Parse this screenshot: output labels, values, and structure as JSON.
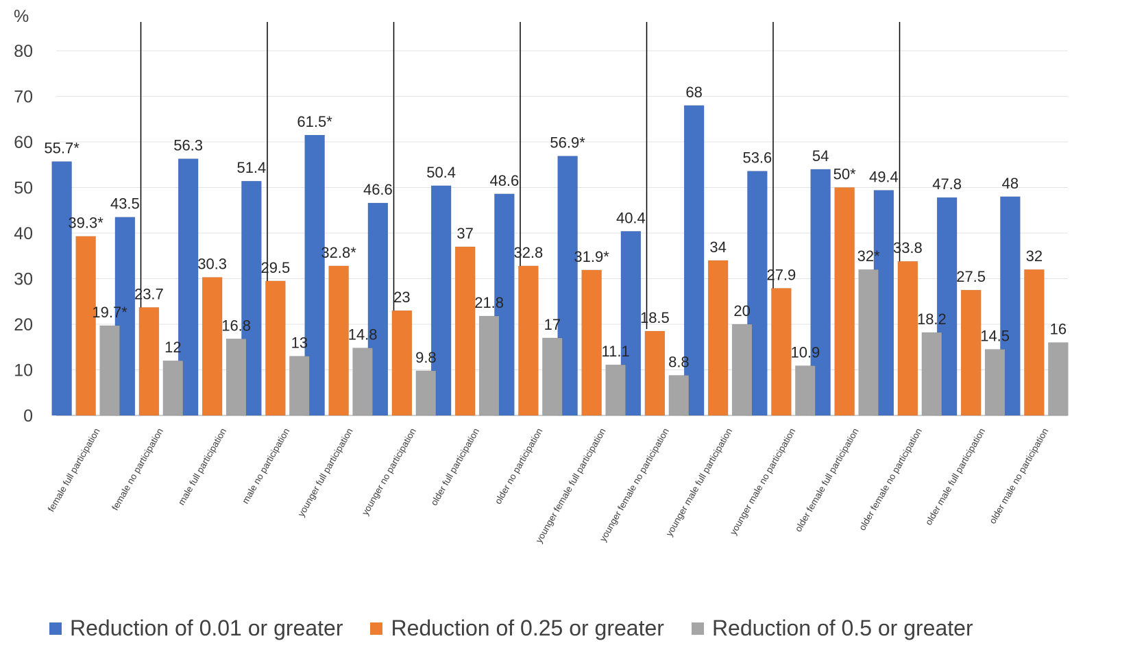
{
  "chart_data": {
    "type": "bar",
    "ylabel": "%",
    "ylim": [
      0,
      80
    ],
    "yticks": [
      "0",
      "10",
      "20",
      "30",
      "40",
      "50",
      "60",
      "70",
      "80"
    ],
    "categories": [
      "female full participation",
      "female no participation",
      "male full participation",
      "male no participation",
      "younger full participation",
      "younger no participation",
      "older full participation",
      "older no participation",
      "younger female full participation",
      "younger female no participation",
      "younger male full participation",
      "younger male no participation",
      "older female full participation",
      "older female no participation",
      "older male full participation",
      "older male no participation"
    ],
    "series": [
      {
        "name": "Reduction of 0.01 or greater",
        "color": "#4472C4",
        "values": [
          55.7,
          43.5,
          56.3,
          51.4,
          61.5,
          46.6,
          50.4,
          48.6,
          56.9,
          40.4,
          68,
          53.6,
          54,
          49.4,
          47.8,
          48
        ],
        "labels": [
          "55.7*",
          "43.5",
          "56.3",
          "51.4",
          "61.5*",
          "46.6",
          "50.4",
          "48.6",
          "56.9*",
          "40.4",
          "68",
          "53.6",
          "54",
          "49.4",
          "47.8",
          "48"
        ]
      },
      {
        "name": "Reduction of 0.25 or greater",
        "color": "#ED7D31",
        "values": [
          39.3,
          23.7,
          30.3,
          29.5,
          32.8,
          23,
          37,
          32.8,
          31.9,
          18.5,
          34,
          27.9,
          50,
          33.8,
          27.5,
          32
        ],
        "labels": [
          "39.3*",
          "23.7",
          "30.3",
          "29.5",
          "32.8*",
          "23",
          "37",
          "32.8",
          "31.9*",
          "18.5",
          "34",
          "27.9",
          "50*",
          "33.8",
          "27.5",
          "32"
        ]
      },
      {
        "name": "Reduction of 0.5 or greater",
        "color": "#A5A5A5",
        "values": [
          19.7,
          12,
          16.8,
          13,
          14.8,
          9.8,
          21.8,
          17,
          11.1,
          8.8,
          20,
          10.9,
          32,
          18.2,
          14.5,
          16
        ],
        "labels": [
          "19.7*",
          "12",
          "16.8",
          "13",
          "14.8",
          "9.8",
          "21.8",
          "17",
          "11.1",
          "8.8",
          "20",
          "10.9",
          "32*",
          "18.2",
          "14.5",
          "16"
        ]
      }
    ],
    "gridlines": true,
    "legend_position": "bottom"
  }
}
